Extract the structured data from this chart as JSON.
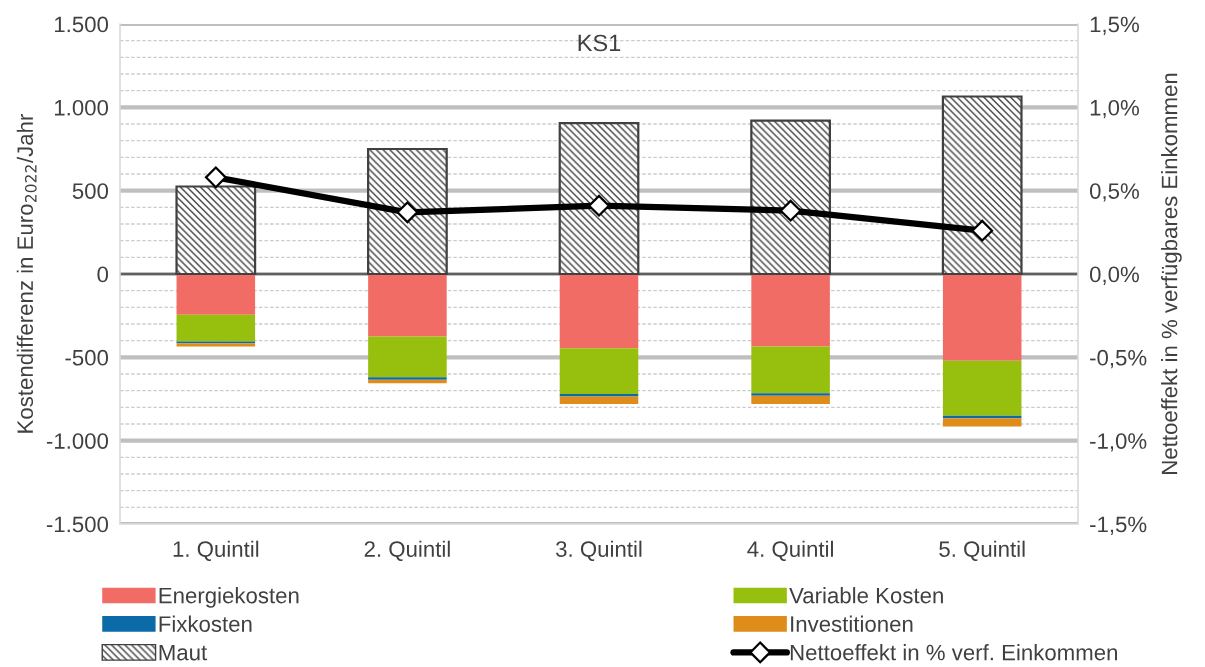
{
  "chart_data": {
    "type": "bar",
    "title": "KS1",
    "ylabel": "Kostendifferenz in Euro$_{2022}$/Jahr",
    "y2label": "Nettoeffekt in % verfügbares Einkommen",
    "categories": [
      "1. Quintil",
      "2. Quintil",
      "3. Quintil",
      "4. Quintil",
      "5. Quintil"
    ],
    "stacked": true,
    "series": [
      {
        "name": "Energiekosten",
        "color": "#f06c64",
        "values": [
          -245,
          -375,
          -445,
          -435,
          -520
        ]
      },
      {
        "name": "Variable Kosten",
        "color": "#97bf0d",
        "values": [
          -160,
          -245,
          -275,
          -280,
          -330
        ]
      },
      {
        "name": "Fixkosten",
        "color": "#0b6aa8",
        "values": [
          -10,
          -15,
          -15,
          -15,
          -15
        ]
      },
      {
        "name": "Investitionen",
        "color": "#de8c1a",
        "values": [
          -20,
          -20,
          -45,
          -50,
          -50
        ]
      },
      {
        "name": "Maut",
        "color": "#404040",
        "values": [
          525,
          750,
          905,
          920,
          1065
        ]
      },
      {
        "name": "Nettoeffekt in % verf. Einkommen",
        "type": "line",
        "axis": "y2",
        "color": "#000000",
        "marker": "diamond",
        "line_style": "solid",
        "values": [
          0.58,
          0.37,
          0.41,
          0.38,
          0.26
        ]
      }
    ],
    "ylim": [
      -1500,
      1500
    ],
    "yticks": [
      {
        "value": -1500,
        "label": "-1.500"
      },
      {
        "value": -1400,
        "label": null
      },
      {
        "value": -1300,
        "label": null
      },
      {
        "value": -1200,
        "label": null
      },
      {
        "value": -1100,
        "label": null
      },
      {
        "value": -1000,
        "label": "-1.000"
      },
      {
        "value": -900,
        "label": null
      },
      {
        "value": -800,
        "label": null
      },
      {
        "value": -700,
        "label": null
      },
      {
        "value": -600,
        "label": null
      },
      -500,
      {
        "value": -400,
        "label": null
      },
      {
        "value": -300,
        "label": null
      },
      {
        "value": -200,
        "label": null
      },
      {
        "value": -100,
        "label": null
      },
      0,
      {
        "value": 100,
        "label": null
      },
      {
        "value": 200,
        "label": null
      },
      {
        "value": 300,
        "label": null
      },
      {
        "value": 400,
        "label": null
      },
      500,
      {
        "value": 600,
        "label": null
      },
      {
        "value": 700,
        "label": null
      },
      {
        "value": 800,
        "label": null
      },
      {
        "value": 900,
        "label": null
      },
      {
        "value": 1000,
        "label": "1.000"
      },
      {
        "value": 1100,
        "label": null
      },
      {
        "value": 1200,
        "label": null
      },
      {
        "value": 1300,
        "label": null
      },
      {
        "value": 1400,
        "label": null
      },
      {
        "value": 1500,
        "label": "1.500"
      }
    ],
    "y2lim": [
      -1.5,
      1.5
    ],
    "y2ticks": [
      {
        "value": -1.5,
        "label": "-1,5%"
      },
      {
        "value": -1.0,
        "label": "-1,0%"
      },
      {
        "value": -0.5,
        "label": "-0,5%"
      },
      {
        "value": 0,
        "label": "0,0%"
      },
      {
        "value": 0.5,
        "label": "0,5%"
      },
      {
        "value": 1.0,
        "label": "1,0%"
      },
      {
        "value": 1.5,
        "label": "1,5%"
      }
    ],
    "ref_lines": [
      {
        "axis": "y",
        "value": 0,
        "color": "#404040"
      }
    ],
    "grid": "y",
    "legend": "bottom"
  }
}
